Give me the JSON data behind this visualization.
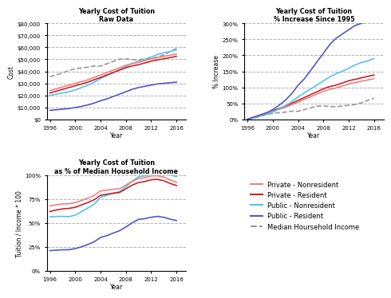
{
  "years": [
    1996,
    1997,
    1998,
    1999,
    2000,
    2001,
    2002,
    2003,
    2004,
    2005,
    2006,
    2007,
    2008,
    2009,
    2010,
    2011,
    2012,
    2013,
    2014,
    2015,
    2016
  ],
  "private_nonresident": [
    24000,
    25500,
    27000,
    28500,
    30000,
    31500,
    33000,
    35000,
    37000,
    39000,
    41000,
    43000,
    45000,
    46500,
    47500,
    49000,
    50500,
    51500,
    52500,
    53500,
    54500
  ],
  "private_resident": [
    22000,
    23500,
    25000,
    26500,
    28000,
    29500,
    31000,
    33000,
    35000,
    37000,
    39000,
    41000,
    43000,
    44500,
    45500,
    47000,
    48500,
    49500,
    50500,
    51500,
    52500
  ],
  "public_nonresident": [
    20000,
    21000,
    22000,
    23000,
    24500,
    26500,
    28500,
    31000,
    34000,
    36500,
    39000,
    41500,
    44000,
    46500,
    48500,
    50000,
    52000,
    54000,
    55500,
    56500,
    58000
  ],
  "public_resident": [
    7500,
    8000,
    8500,
    9000,
    9800,
    10800,
    12000,
    13500,
    15500,
    17000,
    19000,
    21000,
    23000,
    25000,
    26500,
    27500,
    28500,
    29500,
    30000,
    30500,
    31000
  ],
  "median_household": [
    35500,
    37000,
    38700,
    40700,
    42200,
    42900,
    43500,
    44500,
    44400,
    46300,
    48200,
    50200,
    50300,
    49800,
    49400,
    50500,
    51000,
    51900,
    53700,
    56500,
    59000
  ],
  "title1": "Yearly Cost of Tuition\nRaw Data",
  "title2": "Yearly Cost of Tuition\n% Increase Since 1995",
  "title3": "Yearly Cost of Tuition\nas % of Median Household Income",
  "ylabel1": "Cost",
  "ylabel2": "% Increase",
  "ylabel3": "Tuition / Income * 100",
  "xlabel": "Year",
  "color_private_nr": "#F08080",
  "color_private_r": "#CC2222",
  "color_public_nr": "#4FC3F7",
  "color_public_r": "#5555CC",
  "color_median": "#999999",
  "legend_labels": [
    "Private - Nonresident",
    "Private - Resident",
    "Public - Nonresident",
    "Public - Resident",
    "Median Hoursehold Income"
  ],
  "background": "#FFFFFF"
}
